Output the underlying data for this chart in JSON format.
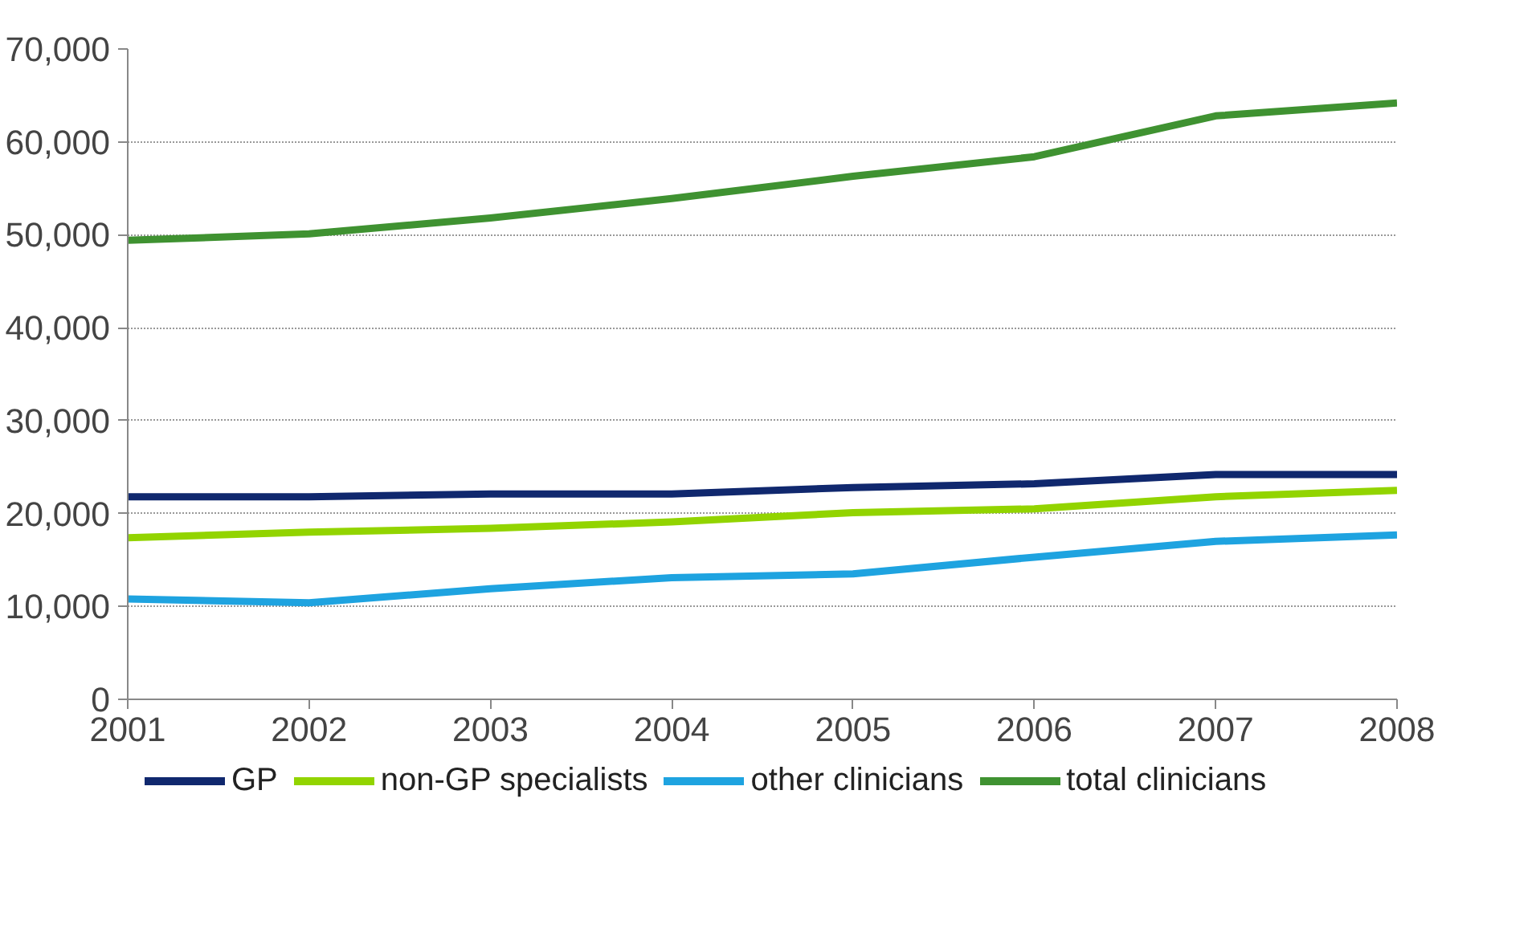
{
  "chart_data": {
    "type": "line",
    "x": [
      2001,
      2002,
      2003,
      2004,
      2005,
      2006,
      2007,
      2008
    ],
    "xlim": [
      2001,
      2008
    ],
    "xticks": [
      2001,
      2002,
      2003,
      2004,
      2005,
      2006,
      2007,
      2008
    ],
    "ylim": [
      0,
      70000
    ],
    "yticks": [
      {
        "value": 0,
        "label": "0"
      },
      {
        "value": 10000,
        "label": "10,000"
      },
      {
        "value": 20000,
        "label": "20,000"
      },
      {
        "value": 30000,
        "label": "30,000"
      },
      {
        "value": 40000,
        "label": "40,000"
      },
      {
        "value": 50000,
        "label": "50,000"
      },
      {
        "value": 60000,
        "label": "60,000"
      },
      {
        "value": 70000,
        "label": "70,000"
      }
    ],
    "grid": "y",
    "legend": "bottom",
    "marker": "none",
    "line_style": "solid",
    "series": [
      {
        "name": "GP",
        "color": "#10286e",
        "values": [
          21800,
          21800,
          22100,
          22100,
          22800,
          23200,
          24200,
          24200
        ]
      },
      {
        "name": "non-GP specialists",
        "color": "#92d400",
        "values": [
          17400,
          18000,
          18400,
          19100,
          20100,
          20500,
          21800,
          22500
        ]
      },
      {
        "name": "other clinicians",
        "color": "#1ea3e0",
        "values": [
          10800,
          10400,
          11900,
          13100,
          13500,
          15300,
          17000,
          17700
        ]
      },
      {
        "name": "total clinicians",
        "color": "#3f9231",
        "values": [
          49400,
          50100,
          51800,
          53900,
          56300,
          58400,
          62800,
          64200
        ]
      }
    ]
  }
}
